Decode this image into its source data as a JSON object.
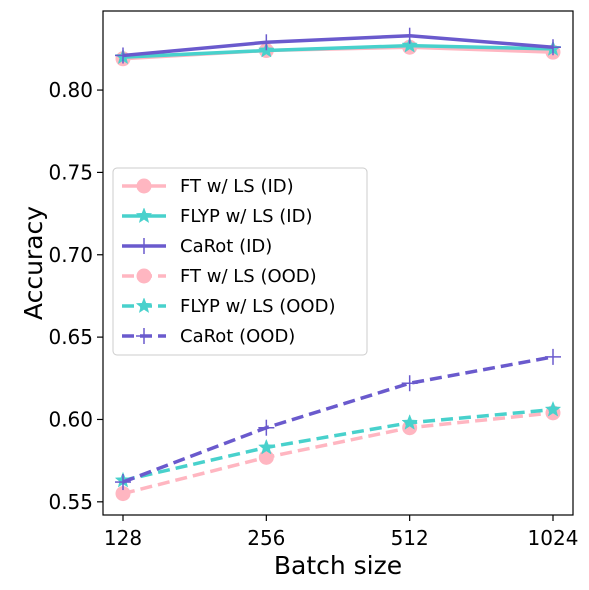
{
  "chart_data": {
    "type": "line",
    "title": "",
    "xlabel": "Batch size",
    "ylabel": "Accuracy",
    "x": [
      "128",
      "256",
      "512",
      "1024"
    ],
    "ylim": [
      0.542,
      0.848
    ],
    "yticks": [
      "0.55",
      "0.60",
      "0.65",
      "0.70",
      "0.75",
      "0.80"
    ],
    "grid": false,
    "legend_position": "center-left",
    "series": [
      {
        "name": "FT w/ LS (ID)",
        "color": "#ffb6c1",
        "style": "solid",
        "marker": "circle",
        "values": [
          0.819,
          0.824,
          0.826,
          0.823
        ]
      },
      {
        "name": "FLYP w/ LS (ID)",
        "color": "#48d1cc",
        "style": "solid",
        "marker": "star",
        "values": [
          0.82,
          0.824,
          0.827,
          0.825
        ]
      },
      {
        "name": "CaRot (ID)",
        "color": "#6a5acd",
        "style": "solid",
        "marker": "plus",
        "values": [
          0.821,
          0.829,
          0.833,
          0.826
        ]
      },
      {
        "name": "FT w/ LS (OOD)",
        "color": "#ffb6c1",
        "style": "dashed",
        "marker": "circle",
        "values": [
          0.555,
          0.577,
          0.595,
          0.604
        ]
      },
      {
        "name": "FLYP w/ LS (OOD)",
        "color": "#48d1cc",
        "style": "dashed",
        "marker": "star",
        "values": [
          0.563,
          0.583,
          0.598,
          0.606
        ]
      },
      {
        "name": "CaRot (OOD)",
        "color": "#6a5acd",
        "style": "dashed",
        "marker": "plus",
        "values": [
          0.562,
          0.595,
          0.622,
          0.638
        ]
      }
    ]
  }
}
